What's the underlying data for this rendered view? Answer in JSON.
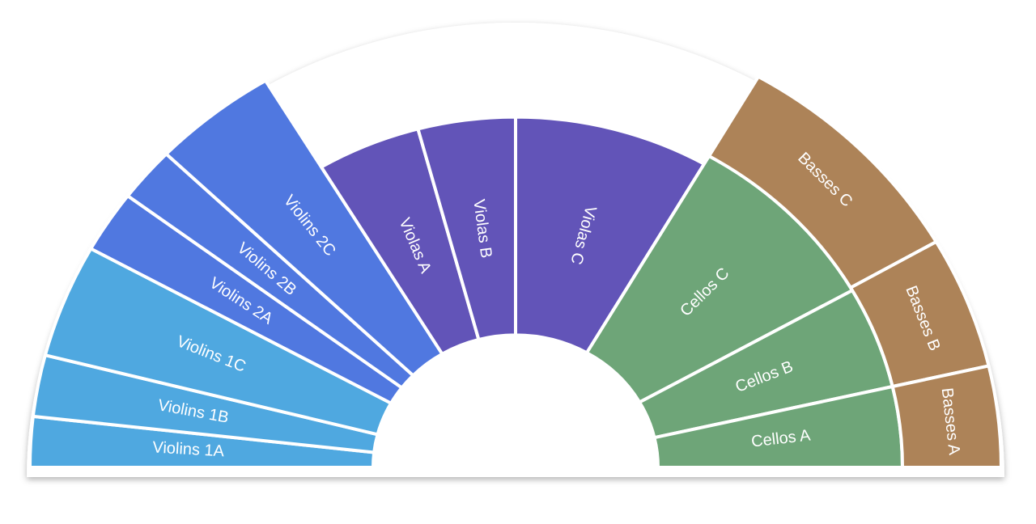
{
  "sections": [
    {
      "label": "Violins 1A"
    },
    {
      "label": "Violins 1B"
    },
    {
      "label": "Violins 1C"
    },
    {
      "label": "Violins 2A"
    },
    {
      "label": "Violins 2B"
    },
    {
      "label": "Violins 2C"
    },
    {
      "label": "Violas A"
    },
    {
      "label": "Violas B"
    },
    {
      "label": "Violas C"
    },
    {
      "label": "Cellos C"
    },
    {
      "label": "Cellos B"
    },
    {
      "label": "Cellos A"
    },
    {
      "label": "Basses C"
    },
    {
      "label": "Basses B"
    },
    {
      "label": "Basses A"
    }
  ]
}
